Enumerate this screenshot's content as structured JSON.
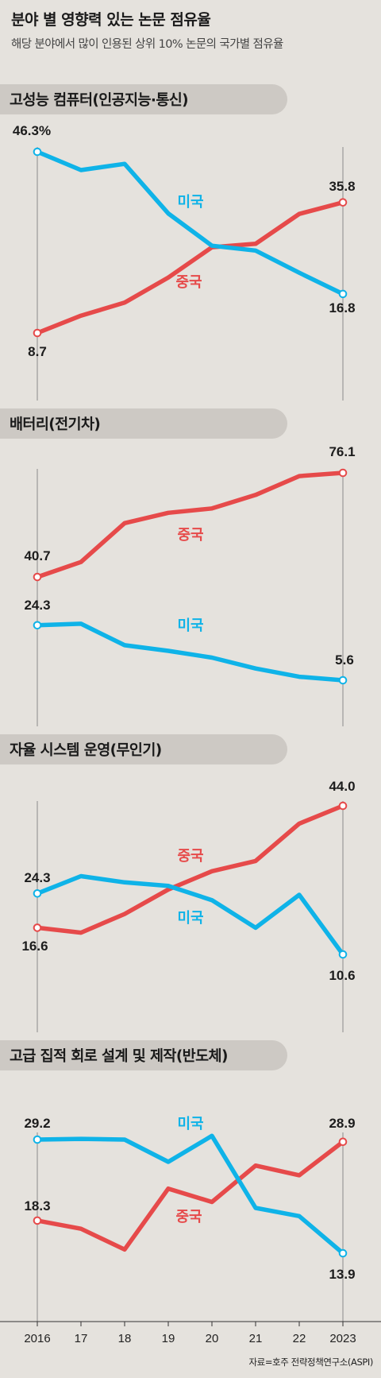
{
  "title": "분야 별 영향력 있는 논문 점유율",
  "subtitle": "해당 분야에서 많이 인용된 상위 10% 논문의 국가별 점유율",
  "source": "자료=호주 전략정책연구소(ASPI)",
  "colors": {
    "usa": "#0fb3e8",
    "china": "#e64a4a",
    "panel_bg": "#cdc9c4",
    "background": "#e5e2dd"
  },
  "x_ticks": [
    "2016",
    "17",
    "18",
    "19",
    "20",
    "21",
    "22",
    "2023"
  ],
  "chart_data": [
    {
      "type": "line",
      "title": "고성능 컴퓨터(인공지능·통신)",
      "x": [
        "2016",
        "17",
        "18",
        "19",
        "20",
        "21",
        "22",
        "2023"
      ],
      "series": [
        {
          "name": "미국",
          "values": [
            46.3,
            42.5,
            43.8,
            33.5,
            26.8,
            25.8,
            21.2,
            16.8
          ]
        },
        {
          "name": "중국",
          "values": [
            8.7,
            12.3,
            15.0,
            20.2,
            26.5,
            27.2,
            33.4,
            35.8
          ]
        }
      ],
      "end_labels": {
        "usa_start": "46.3%",
        "usa_end": "16.8",
        "china_start": "8.7",
        "china_end": "35.8"
      }
    },
    {
      "type": "line",
      "title": "배터리(전기차)",
      "x": [
        "2016",
        "17",
        "18",
        "19",
        "20",
        "21",
        "22",
        "2023"
      ],
      "series": [
        {
          "name": "미국",
          "values": [
            24.3,
            24.8,
            17.5,
            15.6,
            13.3,
            9.6,
            6.8,
            5.6
          ]
        },
        {
          "name": "중국",
          "values": [
            40.7,
            45.8,
            59.0,
            62.5,
            64.0,
            68.6,
            75.0,
            76.1
          ]
        }
      ],
      "end_labels": {
        "usa_start": "24.3",
        "usa_end": "5.6",
        "china_start": "40.7",
        "china_end": "76.1"
      }
    },
    {
      "type": "line",
      "title": "자율 시스템 운영(무인기)",
      "x": [
        "2016",
        "17",
        "18",
        "19",
        "20",
        "21",
        "22",
        "2023"
      ],
      "series": [
        {
          "name": "미국",
          "values": [
            24.3,
            28.2,
            26.8,
            26.0,
            22.8,
            16.6,
            24.0,
            10.6
          ]
        },
        {
          "name": "중국",
          "values": [
            16.6,
            15.5,
            19.7,
            25.2,
            29.3,
            31.6,
            40.0,
            44.0
          ]
        }
      ],
      "end_labels": {
        "usa_start": "24.3",
        "usa_end": "10.6",
        "china_start": "16.6",
        "china_end": "44.0"
      }
    },
    {
      "type": "line",
      "title": "고급 집적 회로 설계 및 제작(반도체)",
      "x": [
        "2016",
        "17",
        "18",
        "19",
        "20",
        "21",
        "22",
        "2023"
      ],
      "series": [
        {
          "name": "미국",
          "values": [
            29.2,
            29.3,
            29.2,
            26.2,
            29.7,
            20.0,
            18.9,
            13.9
          ]
        },
        {
          "name": "중국",
          "values": [
            18.3,
            17.2,
            14.4,
            22.6,
            20.8,
            25.7,
            24.4,
            28.9
          ]
        }
      ],
      "end_labels": {
        "usa_start": "29.2",
        "usa_end": "13.9",
        "china_start": "18.3",
        "china_end": "28.9"
      }
    }
  ]
}
